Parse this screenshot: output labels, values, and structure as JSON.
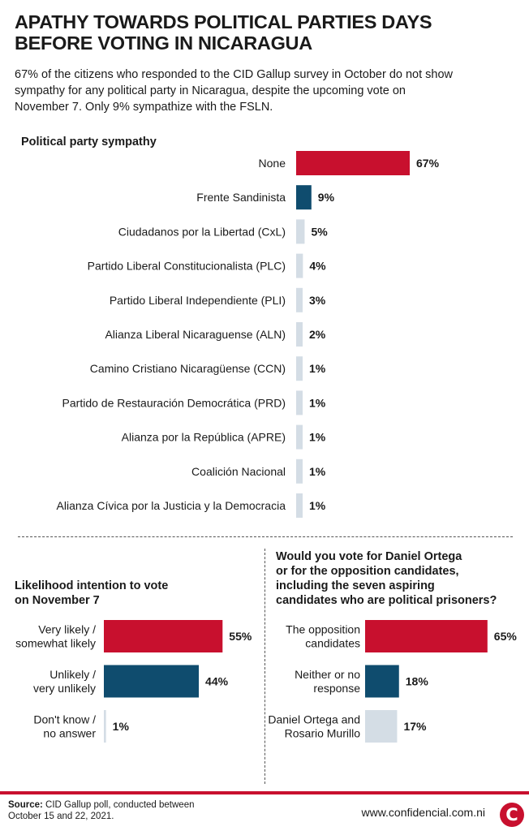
{
  "header": {
    "title": "APATHY TOWARDS POLITICAL PARTIES DAYS\nBEFORE VOTING IN NICARAGUA",
    "subtitle": "67% of the citizens who responded to the CID Gallup survey in October do not show\nsympathy for any political party in Nicaragua, despite the upcoming vote on\nNovember 7. Only 9% sympathize with the FSLN."
  },
  "colors": {
    "red": "#c8102e",
    "navy": "#0f4c6e",
    "gray": "#d4dde5",
    "text": "#1a1a1a"
  },
  "chart_data": [
    {
      "type": "bar",
      "orientation": "horizontal",
      "title": "Political party sympathy",
      "categories": [
        "None",
        "Frente Sandinista",
        "Ciudadanos por la Libertad (CxL)",
        "Partido Liberal Constitucionalista (PLC)",
        "Partido Liberal Independiente (PLI)",
        "Alianza Liberal Nicaraguense (ALN)",
        "Camino Cristiano Nicaragüense (CCN)",
        "Partido de Restauración Democrática (PRD)",
        "Alianza por la República (APRE)",
        "Coalición Nacional",
        "Alianza Cívica por la Justicia y la Democracia"
      ],
      "values": [
        67,
        9,
        5,
        4,
        3,
        2,
        1,
        1,
        1,
        1,
        1
      ],
      "value_labels": [
        "67%",
        "9%",
        "5%",
        "4%",
        "3%",
        "2%",
        "1%",
        "1%",
        "1%",
        "1%",
        "1%"
      ],
      "bar_colors": [
        "#c8102e",
        "#0f4c6e",
        "#d4dde5",
        "#d4dde5",
        "#d4dde5",
        "#d4dde5",
        "#d4dde5",
        "#d4dde5",
        "#d4dde5",
        "#d4dde5",
        "#d4dde5"
      ],
      "xlim": [
        0,
        100
      ]
    },
    {
      "type": "bar",
      "orientation": "horizontal",
      "title": "Likelihood intention to vote\non November 7",
      "categories": [
        "Very likely /\nsomewhat  likely",
        "Unlikely /\nvery unlikely",
        "Don't know /\nno answer"
      ],
      "values": [
        55,
        44,
        1
      ],
      "value_labels": [
        "55%",
        "44%",
        "1%"
      ],
      "bar_colors": [
        "#c8102e",
        "#0f4c6e",
        "#d4dde5"
      ],
      "xlim": [
        0,
        100
      ]
    },
    {
      "type": "bar",
      "orientation": "horizontal",
      "title": "Would you vote for Daniel Ortega\nor for the opposition candidates,\nincluding the seven aspiring\ncandidates who are political prisoners?",
      "categories": [
        "The opposition\ncandidates",
        "Neither or no\nresponse",
        "Daniel Ortega and\nRosario Murillo"
      ],
      "values": [
        65,
        18,
        17
      ],
      "value_labels": [
        "65%",
        "18%",
        "17%"
      ],
      "bar_colors": [
        "#c8102e",
        "#0f4c6e",
        "#d4dde5"
      ],
      "xlim": [
        0,
        100
      ]
    }
  ],
  "footer": {
    "source_label": "Source:",
    "source_text": " CID Gallup poll, conducted between\nOctober 15 and 22, 2021.",
    "website": "www.confidencial.com.ni",
    "logo_letter": "C"
  }
}
